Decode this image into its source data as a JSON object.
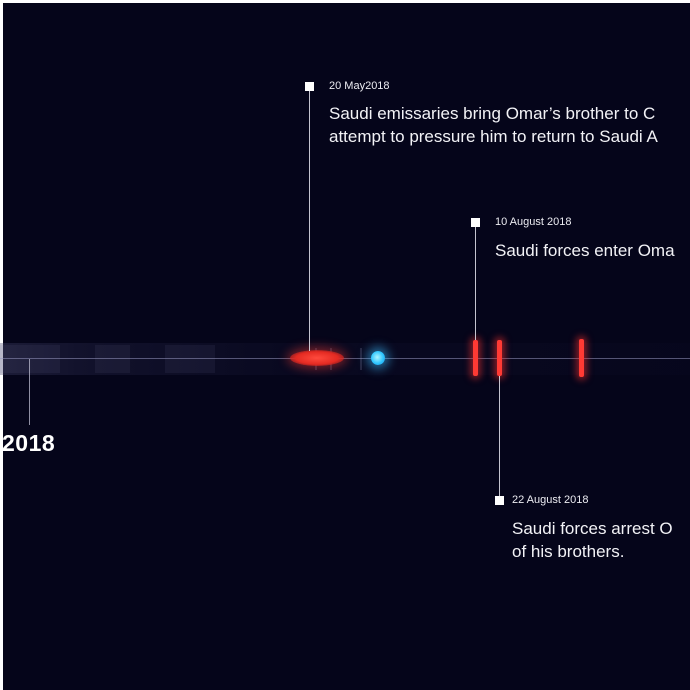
{
  "timeline": {
    "year_label": "2018",
    "events": [
      {
        "date": "20 May2018",
        "description_line1": "Saudi emissaries bring Omar’s brother to C",
        "description_line2": "attempt to pressure him to return to Saudi A"
      },
      {
        "date": "10 August 2018",
        "description_line1": "Saudi forces enter Oma"
      },
      {
        "date": "22 August 2018",
        "description_line1": "Saudi forces arrest O",
        "description_line2": "of his brothers."
      }
    ]
  },
  "colors": {
    "background": "#05051a",
    "event_marker": "#ff3a34",
    "current_marker": "#2fc6ff",
    "text": "#ffffff"
  }
}
